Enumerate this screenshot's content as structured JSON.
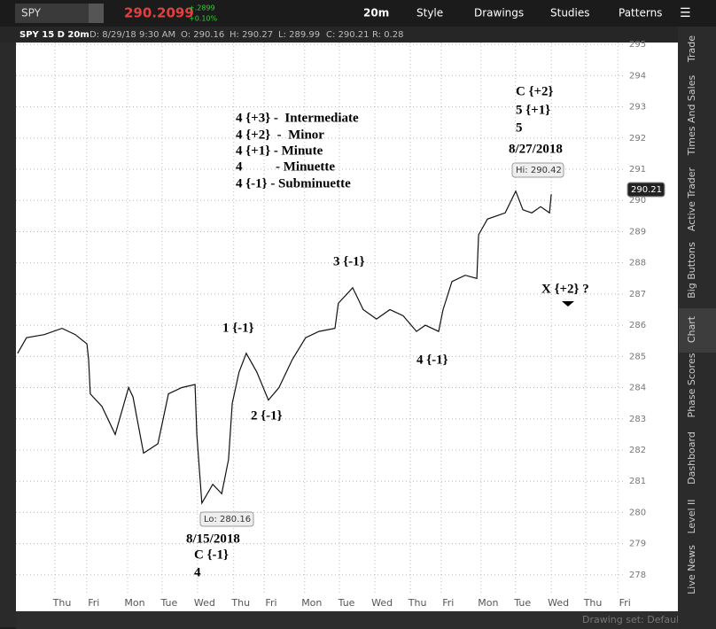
{
  "toolbar": {
    "symbol": "SPY",
    "last": "290.2099",
    "change": "+.2899",
    "change_pct": "+0.10%",
    "interval": "20m",
    "buttons": [
      "Style",
      "Drawings",
      "Studies",
      "Patterns"
    ]
  },
  "info_bar": [
    "SPY 15 D 20m",
    "D: 8/29/18 9:30 AM",
    "O: 290.16",
    "H: 290.27",
    "L: 289.99",
    "C: 290.21",
    "R: 0.28"
  ],
  "sidebar_tabs": [
    "Trade",
    "Times And Sales",
    "Active Trader",
    "Big Buttons",
    "Chart",
    "Phase Scores",
    "Dashboard",
    "Level II",
    "Live News"
  ],
  "footer": {
    "drawing_set": "Drawing set: Default"
  },
  "chart_data": {
    "type": "line",
    "series": [
      {
        "name": "SPY",
        "color": "#111111",
        "x": [
          -1.3,
          -1.04,
          -0.52,
          0,
          0.39,
          0.73,
          0.78,
          0.83,
          1.17,
          1.56,
          1.95,
          2.08,
          2.39,
          2.81,
          3.12,
          3.51,
          3.9,
          3.95,
          4.1,
          4.42,
          4.68,
          4.88,
          4.99,
          5.19,
          5.4,
          5.71,
          6.05,
          6.36,
          6.75,
          7.14,
          7.53,
          8.0,
          8.1,
          8.52,
          8.83,
          9.22,
          9.61,
          10.0,
          10.39,
          10.65,
          11.04,
          11.17,
          11.43,
          11.82,
          12.16,
          12.21,
          12.47,
          12.99,
          13.3,
          13.51,
          13.77,
          14.03,
          14.29,
          14.34
        ],
        "values": [
          285.1,
          285.6,
          285.7,
          285.9,
          285.7,
          285.4,
          284.9,
          283.8,
          283.4,
          282.5,
          284.0,
          283.7,
          281.9,
          282.2,
          283.8,
          284.0,
          284.1,
          282.5,
          280.3,
          280.9,
          280.6,
          281.7,
          283.5,
          284.5,
          285.1,
          284.5,
          283.6,
          284.0,
          284.9,
          285.6,
          285.8,
          285.9,
          286.7,
          287.2,
          286.5,
          286.2,
          286.5,
          286.3,
          285.8,
          286.0,
          285.8,
          286.5,
          287.4,
          287.6,
          287.5,
          288.9,
          289.4,
          289.6,
          290.3,
          289.7,
          289.6,
          289.8,
          289.6,
          290.2
        ]
      }
    ],
    "xlim": [
      -1.35,
      16.52
    ],
    "xticks": [
      {
        "value": 0,
        "label": "Thu"
      },
      {
        "value": 0.93,
        "label": "Fri"
      },
      {
        "value": 2.13,
        "label": "Mon"
      },
      {
        "value": 3.14,
        "label": "Tue"
      },
      {
        "value": 4.18,
        "label": "Wed"
      },
      {
        "value": 5.24,
        "label": "Thu"
      },
      {
        "value": 6.13,
        "label": "Fri"
      },
      {
        "value": 7.32,
        "label": "Mon"
      },
      {
        "value": 8.34,
        "label": "Tue"
      },
      {
        "value": 9.38,
        "label": "Wed"
      },
      {
        "value": 10.42,
        "label": "Thu"
      },
      {
        "value": 11.32,
        "label": "Fri"
      },
      {
        "value": 12.49,
        "label": "Mon"
      },
      {
        "value": 13.5,
        "label": "Tue"
      },
      {
        "value": 14.55,
        "label": "Wed"
      },
      {
        "value": 15.56,
        "label": "Thu"
      },
      {
        "value": 16.5,
        "label": "Fri"
      }
    ],
    "ylim": [
      277.4,
      295.06
    ],
    "yticks": [
      278,
      279,
      280,
      281,
      282,
      283,
      284,
      285,
      286,
      287,
      288,
      289,
      290,
      291,
      292,
      293,
      294,
      295
    ],
    "grid": true,
    "price_labels": {
      "high": "Hi: 290.42",
      "low": "Lo: 280.16",
      "current": "290.21"
    },
    "annotations": [
      "C {+2}",
      "5 {+1}",
      "5",
      "8/27/2018",
      "4 {+3} -  Intermediate",
      "4 {+2}  -  Minor",
      "4 {+1} - Minute",
      "4          - Minuette",
      "4 {-1} - Subminuette",
      "3 {-1}",
      "1 {-1}",
      "2 {-1}",
      "4 {-1}",
      "X {+2} ?",
      "8/15/2018",
      "C {-1}",
      "4"
    ]
  }
}
